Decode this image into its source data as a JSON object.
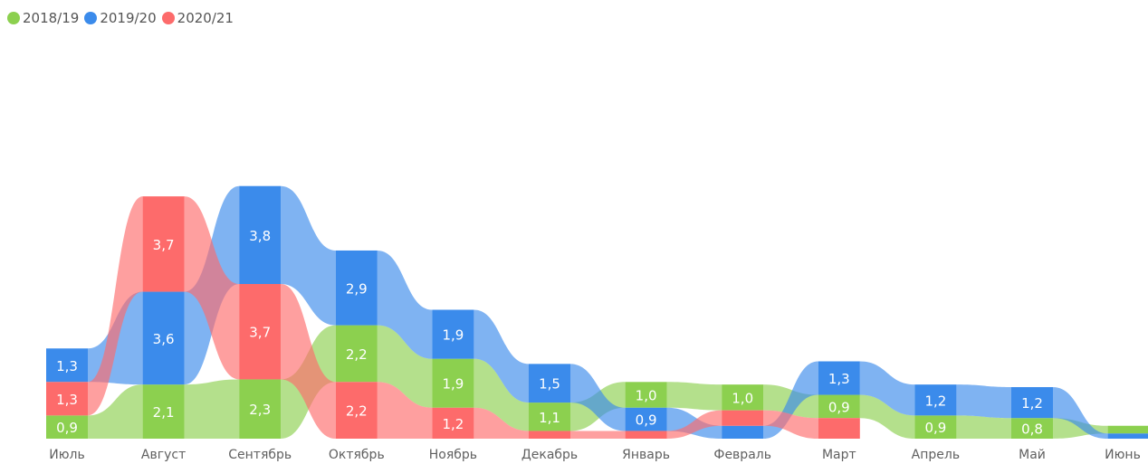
{
  "chart_data": {
    "type": "ribbon",
    "title": "",
    "xlabel": "",
    "ylabel": "",
    "legend_position": "top-left",
    "categories": [
      "Июль",
      "Август",
      "Сентябрь",
      "Октябрь",
      "Ноябрь",
      "Декабрь",
      "Январь",
      "Февраль",
      "Март",
      "Апрель",
      "Май",
      "Июнь"
    ],
    "series": [
      {
        "name": "2018/19",
        "color": "#8cd04f",
        "values": [
          0.9,
          2.1,
          2.3,
          2.2,
          1.9,
          1.1,
          1.0,
          1.0,
          0.9,
          0.9,
          0.8,
          0.3
        ],
        "labels": [
          "0,9",
          "2,1",
          "2,3",
          "2,2",
          "1,9",
          "1,1",
          "1,0",
          "1,0",
          "0,9",
          "0,9",
          "0,8",
          ""
        ]
      },
      {
        "name": "2019/20",
        "color": "#3b8beb",
        "values": [
          1.3,
          3.6,
          3.8,
          2.9,
          1.9,
          1.5,
          0.9,
          0.5,
          1.3,
          1.2,
          1.2,
          0.2
        ],
        "labels": [
          "1,3",
          "3,6",
          "3,8",
          "2,9",
          "1,9",
          "1,5",
          "0,9",
          "",
          "1,3",
          "1,2",
          "1,2",
          ""
        ]
      },
      {
        "name": "2020/21",
        "color": "#fd6b6b",
        "values": [
          1.3,
          3.7,
          3.7,
          2.2,
          1.2,
          0.3,
          0.3,
          0.6,
          0.8,
          null,
          null,
          null
        ],
        "labels": [
          "1,3",
          "3,7",
          "3,7",
          "2,2",
          "1,2",
          "",
          "",
          "",
          "",
          "",
          "",
          ""
        ]
      }
    ],
    "stack_order_bottom_to_top": [
      [
        "2018/19",
        "2020/21",
        "2019/20"
      ],
      [
        "2018/19",
        "2019/20",
        "2020/21"
      ],
      [
        "2018/19",
        "2020/21",
        "2019/20"
      ],
      [
        "2020/21",
        "2018/19",
        "2019/20"
      ],
      [
        "2020/21",
        "2018/19",
        "2019/20"
      ],
      [
        "2020/21",
        "2018/19",
        "2019/20"
      ],
      [
        "2020/21",
        "2019/20",
        "2018/19"
      ],
      [
        "2019/20",
        "2020/21",
        "2018/19"
      ],
      [
        "2020/21",
        "2018/19",
        "2019/20"
      ],
      [
        "2018/19",
        "2019/20"
      ],
      [
        "2018/19",
        "2019/20"
      ],
      [
        "2019/20",
        "2018/19"
      ]
    ]
  }
}
